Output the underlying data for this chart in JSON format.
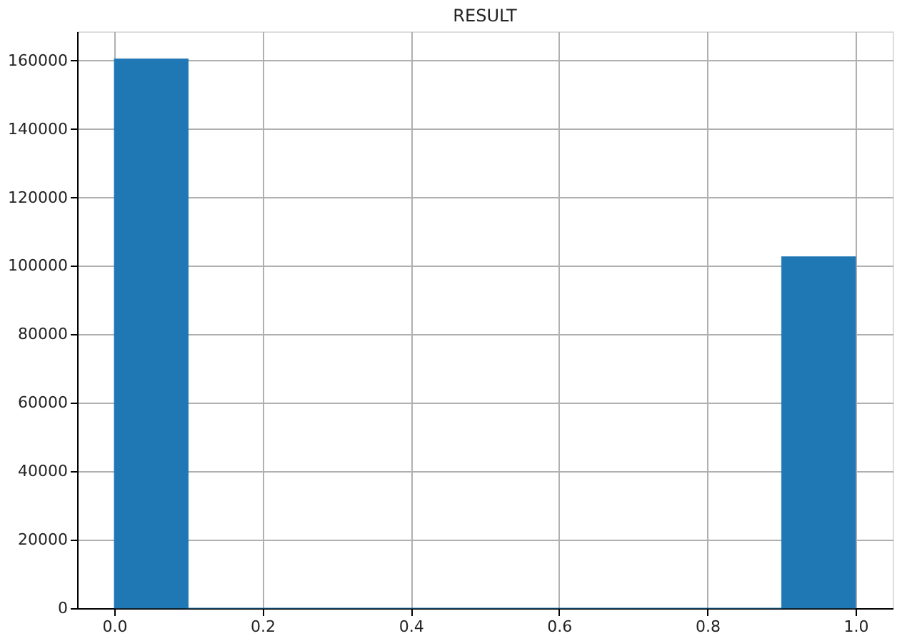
{
  "chart_data": {
    "type": "histogram",
    "title": "RESULT",
    "bins": [
      0.0,
      0.1,
      0.2,
      0.3,
      0.4,
      0.5,
      0.6,
      0.7,
      0.8,
      0.9,
      1.0
    ],
    "values": [
      160500,
      0,
      0,
      0,
      0,
      0,
      0,
      0,
      0,
      102700
    ],
    "color": "#1f77b4",
    "xlim": [
      -0.05,
      1.05
    ],
    "xticks": [
      {
        "value": 0,
        "label": "0.0"
      },
      0.2,
      0.4,
      0.6,
      0.8,
      {
        "value": 1,
        "label": "1.0"
      }
    ],
    "ylim": [
      0,
      168500
    ],
    "yticks": [
      0,
      20000,
      40000,
      60000,
      80000,
      100000,
      120000,
      140000,
      160000
    ],
    "grid": true
  }
}
